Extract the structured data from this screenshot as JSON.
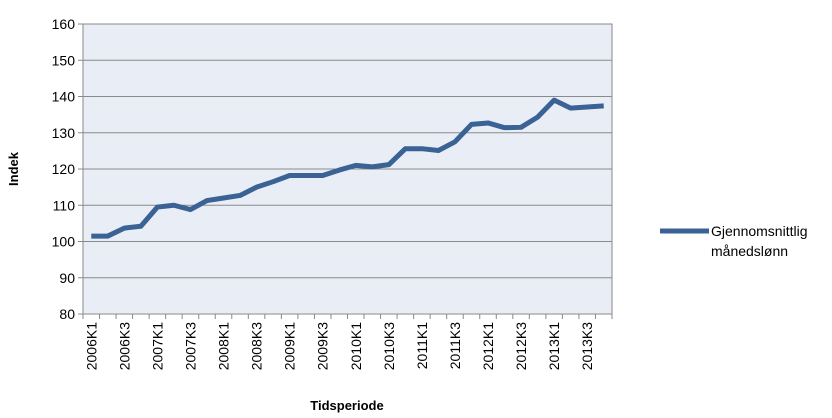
{
  "chart_data": {
    "type": "line",
    "x_label": "Tidsperiode",
    "y_label": "Indek",
    "categories": [
      "2006K1",
      null,
      "2006K3",
      null,
      "2007K1",
      null,
      "2007K3",
      null,
      "2008K1",
      null,
      "2008K3",
      null,
      "2009K1",
      null,
      "2009K3",
      null,
      "2010K1",
      null,
      "2010K3",
      null,
      "2011K1",
      null,
      "2011K3",
      null,
      "2012K1",
      null,
      "2012K3",
      null,
      "2013K1",
      null,
      "2013K3",
      null
    ],
    "series": [
      {
        "name": "Gjennomsnittlig månedslønn",
        "color": "#3b6295",
        "values": [
          101.5,
          101.5,
          103.7,
          104.2,
          109.5,
          110,
          108.8,
          111.3,
          112,
          112.7,
          115,
          116.5,
          118.2,
          118.2,
          118.2,
          119.7,
          121,
          120.6,
          121.2,
          125.6,
          125.6,
          125.1,
          127.5,
          132.3,
          132.7,
          131.4,
          131.5,
          134.3,
          139,
          136.8,
          137.1,
          137.4
        ]
      }
    ],
    "ylim": [
      80,
      160
    ],
    "yticks": [
      80,
      90,
      100,
      110,
      120,
      130,
      140,
      150,
      160
    ],
    "grid": true
  }
}
